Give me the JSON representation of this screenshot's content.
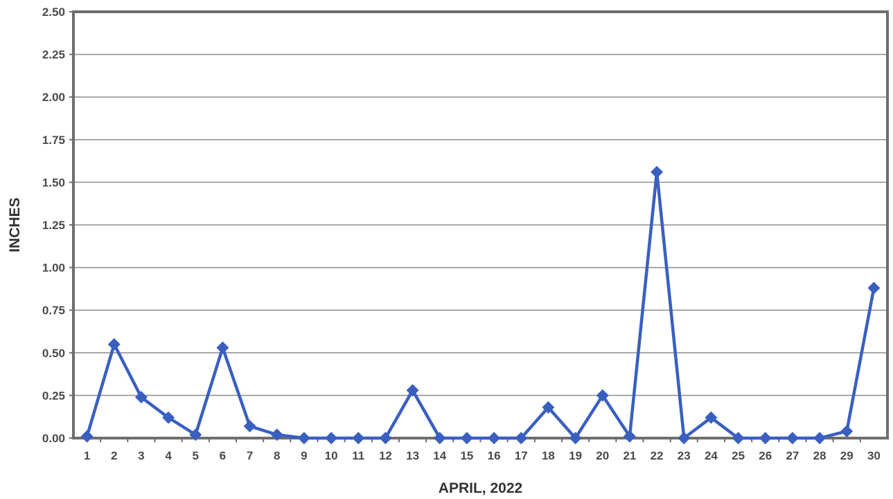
{
  "chart_data": {
    "type": "line",
    "title": "",
    "xlabel": "APRIL, 2022",
    "ylabel": "INCHES",
    "categories": [
      "1",
      "2",
      "3",
      "4",
      "5",
      "6",
      "7",
      "8",
      "9",
      "10",
      "11",
      "12",
      "13",
      "14",
      "15",
      "16",
      "17",
      "18",
      "19",
      "20",
      "21",
      "22",
      "23",
      "24",
      "25",
      "26",
      "27",
      "28",
      "29",
      "30"
    ],
    "series": [
      {
        "values": [
          0.01,
          0.55,
          0.24,
          0.12,
          0.02,
          0.53,
          0.07,
          0.02,
          0.0,
          0.0,
          0.0,
          0.0,
          0.28,
          0.0,
          0.0,
          0.0,
          0.0,
          0.18,
          0.0,
          0.25,
          0.01,
          1.56,
          0.0,
          0.12,
          0.0,
          0.0,
          0.0,
          0.0,
          0.04,
          0.88
        ],
        "color": "#3a5fc0"
      }
    ],
    "ylim": [
      0,
      2.5
    ],
    "yticks": [
      "0.00",
      "0.25",
      "0.50",
      "0.75",
      "1.00",
      "1.25",
      "1.50",
      "1.75",
      "2.00",
      "2.25",
      "2.50"
    ],
    "grid": true,
    "legend": "none"
  }
}
